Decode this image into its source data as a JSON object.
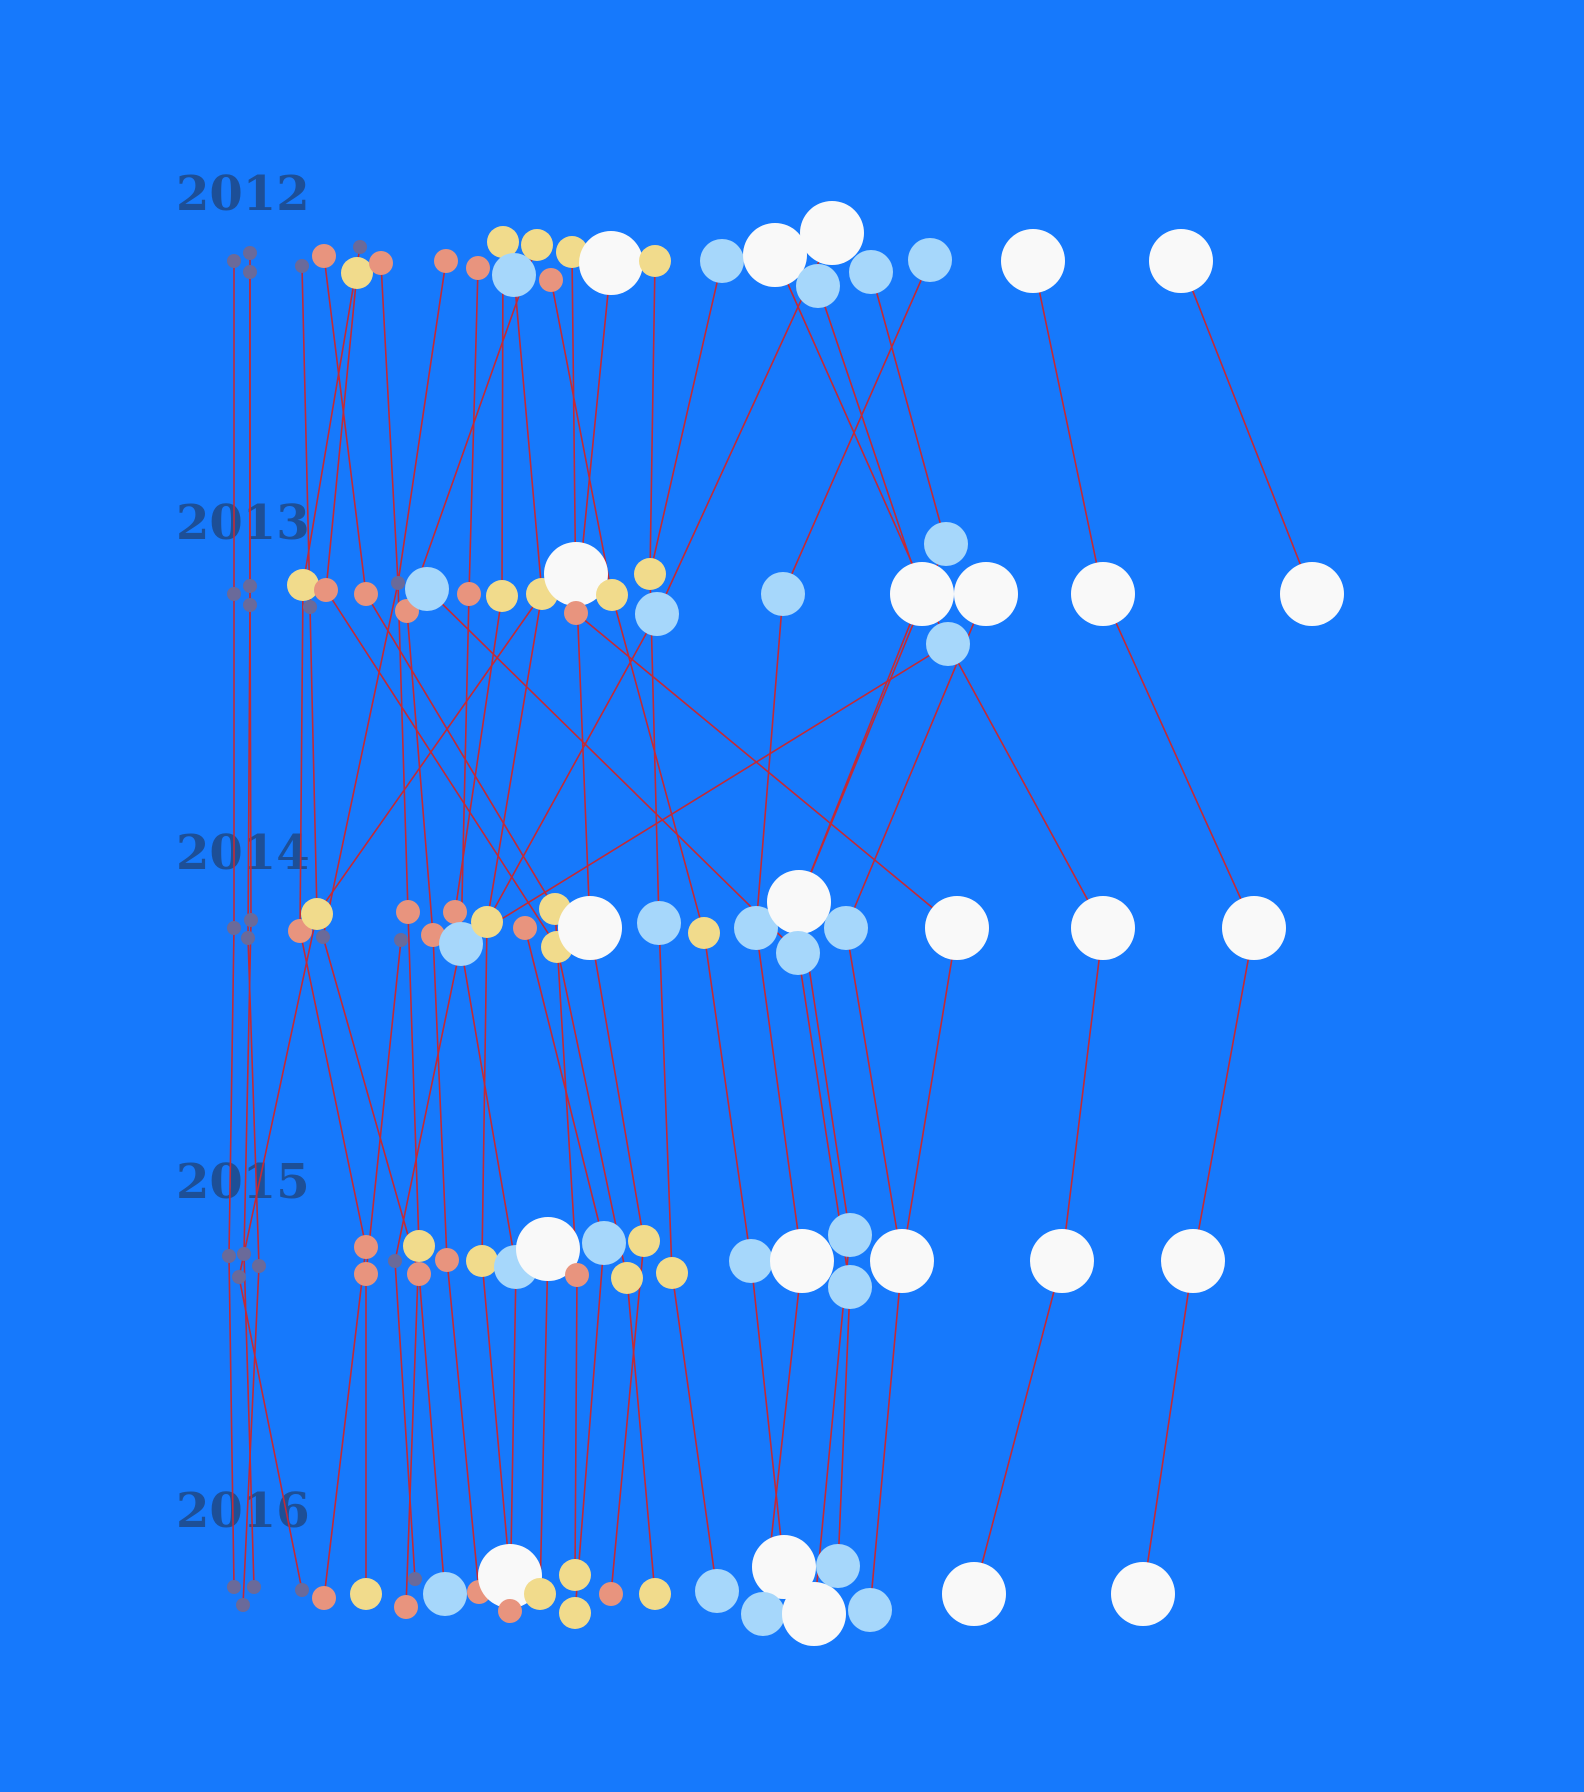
{
  "colors": {
    "background": "#1679fc",
    "link": "#c42a36",
    "year_label": "#1d4f97",
    "categories": [
      "#6a6a9a",
      "#e8947e",
      "#f1db8c",
      "#a6d7fb",
      "#f9f9f9"
    ]
  },
  "chart_data": {
    "type": "beeswarm network",
    "title": "",
    "years": [
      "2012",
      "2013",
      "2014",
      "2015",
      "2016"
    ],
    "size_scale": "node radius grows with category (1 = smallest … 5 = largest)",
    "nodes": {
      "2012": [
        {
          "id": "a1",
          "cat": 0
        },
        {
          "id": "a2",
          "cat": 0
        },
        {
          "id": "a3",
          "cat": 0
        },
        {
          "id": "a4",
          "cat": 0
        },
        {
          "id": "a5",
          "cat": 1
        },
        {
          "id": "a6",
          "cat": 0
        },
        {
          "id": "a7",
          "cat": 2
        },
        {
          "id": "a8",
          "cat": 1
        },
        {
          "id": "a9",
          "cat": 1
        },
        {
          "id": "a10",
          "cat": 1
        },
        {
          "id": "a11",
          "cat": 2
        },
        {
          "id": "a12",
          "cat": 2
        },
        {
          "id": "a13",
          "cat": 3
        },
        {
          "id": "a14",
          "cat": 2
        },
        {
          "id": "a15",
          "cat": 1
        },
        {
          "id": "a16",
          "cat": 4
        },
        {
          "id": "a17",
          "cat": 2
        },
        {
          "id": "a18",
          "cat": 3
        },
        {
          "id": "a19",
          "cat": 4
        },
        {
          "id": "a20",
          "cat": 4
        },
        {
          "id": "a21",
          "cat": 3
        },
        {
          "id": "a22",
          "cat": 3
        },
        {
          "id": "a23",
          "cat": 3
        },
        {
          "id": "a24",
          "cat": 4
        },
        {
          "id": "a25",
          "cat": 4
        }
      ],
      "2013": [
        {
          "id": "b1",
          "cat": 0
        },
        {
          "id": "b2",
          "cat": 0
        },
        {
          "id": "b3",
          "cat": 0
        },
        {
          "id": "b4",
          "cat": 2
        },
        {
          "id": "b5",
          "cat": 0
        },
        {
          "id": "b6",
          "cat": 1
        },
        {
          "id": "b7",
          "cat": 1
        },
        {
          "id": "b8",
          "cat": 0
        },
        {
          "id": "b9",
          "cat": 1
        },
        {
          "id": "b10",
          "cat": 3
        },
        {
          "id": "b11",
          "cat": 1
        },
        {
          "id": "b12",
          "cat": 2
        },
        {
          "id": "b13",
          "cat": 2
        },
        {
          "id": "b14",
          "cat": 4
        },
        {
          "id": "b15",
          "cat": 1
        },
        {
          "id": "b16",
          "cat": 2
        },
        {
          "id": "b17",
          "cat": 2
        },
        {
          "id": "b18",
          "cat": 3
        },
        {
          "id": "b19",
          "cat": 3
        },
        {
          "id": "b20",
          "cat": 3
        },
        {
          "id": "b21",
          "cat": 4
        },
        {
          "id": "b22",
          "cat": 4
        },
        {
          "id": "b23",
          "cat": 3
        },
        {
          "id": "b24",
          "cat": 4
        },
        {
          "id": "b25",
          "cat": 4
        }
      ],
      "2014": [
        {
          "id": "c1",
          "cat": 0
        },
        {
          "id": "c2",
          "cat": 0
        },
        {
          "id": "c3",
          "cat": 0
        },
        {
          "id": "c4",
          "cat": 1
        },
        {
          "id": "c5",
          "cat": 2
        },
        {
          "id": "c6",
          "cat": 0
        },
        {
          "id": "c7",
          "cat": 1
        },
        {
          "id": "c8",
          "cat": 0
        },
        {
          "id": "c9",
          "cat": 1
        },
        {
          "id": "c10",
          "cat": 1
        },
        {
          "id": "c11",
          "cat": 3
        },
        {
          "id": "c12",
          "cat": 2
        },
        {
          "id": "c13",
          "cat": 1
        },
        {
          "id": "c14",
          "cat": 2
        },
        {
          "id": "c15",
          "cat": 2
        },
        {
          "id": "c16",
          "cat": 4
        },
        {
          "id": "c17",
          "cat": 3
        },
        {
          "id": "c18",
          "cat": 2
        },
        {
          "id": "c19",
          "cat": 3
        },
        {
          "id": "c20",
          "cat": 4
        },
        {
          "id": "c21",
          "cat": 3
        },
        {
          "id": "c22",
          "cat": 3
        },
        {
          "id": "c23",
          "cat": 4
        },
        {
          "id": "c24",
          "cat": 4
        },
        {
          "id": "c25",
          "cat": 4
        }
      ],
      "2015": [
        {
          "id": "d1",
          "cat": 0
        },
        {
          "id": "d2",
          "cat": 0
        },
        {
          "id": "d3",
          "cat": 0
        },
        {
          "id": "d4",
          "cat": 0
        },
        {
          "id": "d5",
          "cat": 1
        },
        {
          "id": "d6",
          "cat": 1
        },
        {
          "id": "d7",
          "cat": 0
        },
        {
          "id": "d8",
          "cat": 2
        },
        {
          "id": "d9",
          "cat": 1
        },
        {
          "id": "d10",
          "cat": 1
        },
        {
          "id": "d11",
          "cat": 2
        },
        {
          "id": "d12",
          "cat": 3
        },
        {
          "id": "d13",
          "cat": 4
        },
        {
          "id": "d14",
          "cat": 1
        },
        {
          "id": "d15",
          "cat": 3
        },
        {
          "id": "d16",
          "cat": 2
        },
        {
          "id": "d17",
          "cat": 2
        },
        {
          "id": "d18",
          "cat": 2
        },
        {
          "id": "d19",
          "cat": 3
        },
        {
          "id": "d20",
          "cat": 4
        },
        {
          "id": "d21",
          "cat": 3
        },
        {
          "id": "d22",
          "cat": 3
        },
        {
          "id": "d23",
          "cat": 4
        },
        {
          "id": "d24",
          "cat": 4
        },
        {
          "id": "d25",
          "cat": 4
        }
      ],
      "2016": [
        {
          "id": "e1",
          "cat": 0
        },
        {
          "id": "e2",
          "cat": 0
        },
        {
          "id": "e3",
          "cat": 0
        },
        {
          "id": "e4",
          "cat": 0
        },
        {
          "id": "e5",
          "cat": 1
        },
        {
          "id": "e6",
          "cat": 2
        },
        {
          "id": "e7",
          "cat": 0
        },
        {
          "id": "e8",
          "cat": 1
        },
        {
          "id": "e9",
          "cat": 3
        },
        {
          "id": "e10",
          "cat": 1
        },
        {
          "id": "e11",
          "cat": 4
        },
        {
          "id": "e12",
          "cat": 1
        },
        {
          "id": "e13",
          "cat": 2
        },
        {
          "id": "e14",
          "cat": 2
        },
        {
          "id": "e15",
          "cat": 2
        },
        {
          "id": "e16",
          "cat": 1
        },
        {
          "id": "e17",
          "cat": 2
        },
        {
          "id": "e18",
          "cat": 3
        },
        {
          "id": "e19",
          "cat": 4
        },
        {
          "id": "e20",
          "cat": 3
        },
        {
          "id": "e21",
          "cat": 4
        },
        {
          "id": "e22",
          "cat": 3
        },
        {
          "id": "e23",
          "cat": 3
        },
        {
          "id": "e24",
          "cat": 4
        },
        {
          "id": "e25",
          "cat": 4
        }
      ]
    },
    "links": [
      [
        "a1",
        "b1"
      ],
      [
        "a2",
        "b2"
      ],
      [
        "a3",
        "b3"
      ],
      [
        "a4",
        "b5"
      ],
      [
        "a5",
        "b7"
      ],
      [
        "a6",
        "b4"
      ],
      [
        "a7",
        "b6"
      ],
      [
        "a8",
        "b8"
      ],
      [
        "a9",
        "b8"
      ],
      [
        "a10",
        "b11"
      ],
      [
        "a11",
        "b12"
      ],
      [
        "a12",
        "b9"
      ],
      [
        "a13",
        "b13"
      ],
      [
        "a14",
        "b15"
      ],
      [
        "a15",
        "b16"
      ],
      [
        "a16",
        "b15"
      ],
      [
        "a17",
        "b17"
      ],
      [
        "a18",
        "b17"
      ],
      [
        "a19",
        "b23"
      ],
      [
        "a20",
        "b18"
      ],
      [
        "a21",
        "b21"
      ],
      [
        "a22",
        "b20"
      ],
      [
        "a23",
        "b19"
      ],
      [
        "a24",
        "b24"
      ],
      [
        "a25",
        "b25"
      ],
      [
        "b1",
        "c1"
      ],
      [
        "b2",
        "c2"
      ],
      [
        "b3",
        "c3"
      ],
      [
        "b5",
        "c5"
      ],
      [
        "b6",
        "c15"
      ],
      [
        "b4",
        "c4"
      ],
      [
        "b7",
        "c14"
      ],
      [
        "b8",
        "c7"
      ],
      [
        "b9",
        "c9"
      ],
      [
        "b10",
        "c21"
      ],
      [
        "b11",
        "c11"
      ],
      [
        "b12",
        "c10"
      ],
      [
        "b13",
        "c5"
      ],
      [
        "b14",
        "c16"
      ],
      [
        "b15",
        "c23"
      ],
      [
        "b16",
        "c18"
      ],
      [
        "b17",
        "c17"
      ],
      [
        "b18",
        "c12"
      ],
      [
        "b19",
        "c19"
      ],
      [
        "b20",
        "c20"
      ],
      [
        "b21",
        "c20"
      ],
      [
        "b22",
        "c22"
      ],
      [
        "b23",
        "c24"
      ],
      [
        "b24",
        "c25"
      ],
      [
        "b8",
        "c6"
      ],
      [
        "b13",
        "c12"
      ],
      [
        "b23",
        "c11"
      ],
      [
        "c1",
        "d1"
      ],
      [
        "c2",
        "d2"
      ],
      [
        "c3",
        "d3"
      ],
      [
        "c4",
        "d5"
      ],
      [
        "c5",
        "d4"
      ],
      [
        "c6",
        "d9"
      ],
      [
        "c7",
        "d8"
      ],
      [
        "c8",
        "d6"
      ],
      [
        "c9",
        "d10"
      ],
      [
        "c10",
        "d12"
      ],
      [
        "c11",
        "d7"
      ],
      [
        "c12",
        "d11"
      ],
      [
        "c13",
        "d15"
      ],
      [
        "c14",
        "d14"
      ],
      [
        "c15",
        "d17"
      ],
      [
        "c16",
        "d16"
      ],
      [
        "c17",
        "d18"
      ],
      [
        "c18",
        "d19"
      ],
      [
        "c19",
        "d20"
      ],
      [
        "c20",
        "d21"
      ],
      [
        "c21",
        "d22"
      ],
      [
        "c22",
        "d23"
      ],
      [
        "c23",
        "d23"
      ],
      [
        "c24",
        "d24"
      ],
      [
        "c25",
        "d25"
      ],
      [
        "d1",
        "e1"
      ],
      [
        "d2",
        "e2"
      ],
      [
        "d3",
        "e3"
      ],
      [
        "d4",
        "e4"
      ],
      [
        "d5",
        "e5"
      ],
      [
        "d6",
        "e6"
      ],
      [
        "d7",
        "e7"
      ],
      [
        "d8",
        "e8"
      ],
      [
        "d9",
        "e9"
      ],
      [
        "d10",
        "e10"
      ],
      [
        "d11",
        "e11"
      ],
      [
        "d12",
        "e12"
      ],
      [
        "d13",
        "e13"
      ],
      [
        "d14",
        "e14"
      ],
      [
        "d15",
        "e15"
      ],
      [
        "d16",
        "e16"
      ],
      [
        "d17",
        "e17"
      ],
      [
        "d18",
        "e18"
      ],
      [
        "d19",
        "e19"
      ],
      [
        "d20",
        "e20"
      ],
      [
        "d21",
        "e21"
      ],
      [
        "d22",
        "e22"
      ],
      [
        "d23",
        "e23"
      ],
      [
        "d24",
        "e24"
      ],
      [
        "d25",
        "e25"
      ]
    ]
  }
}
